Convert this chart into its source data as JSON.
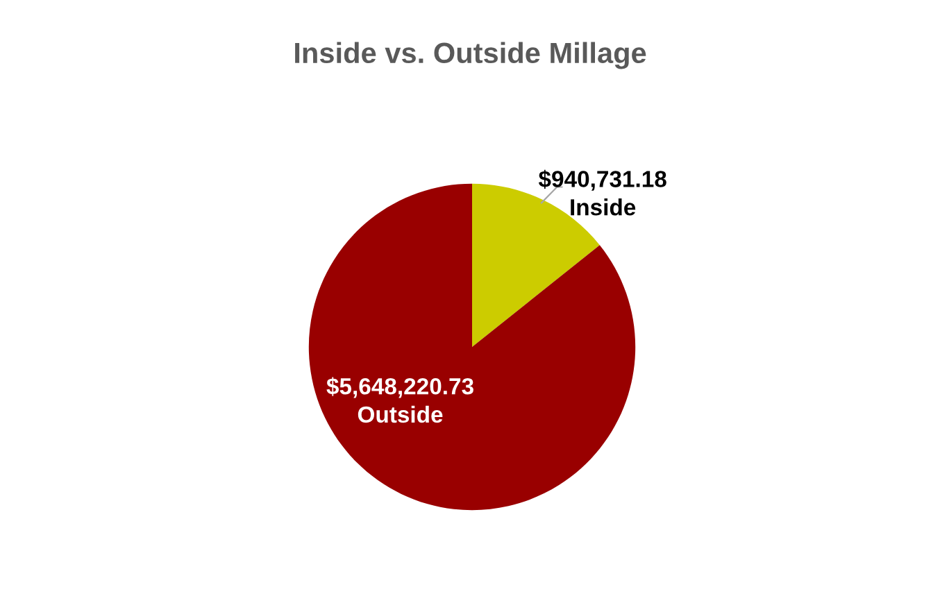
{
  "chart_data": {
    "type": "pie",
    "title": "Inside vs. Outside Millage",
    "categories": [
      "Inside",
      "Outside"
    ],
    "values": [
      940731.18,
      5648220.73
    ],
    "colors": [
      "#cccc00",
      "#990000"
    ],
    "value_labels": [
      "$940,731.18",
      "$5,648,220.73"
    ],
    "legend": false
  }
}
